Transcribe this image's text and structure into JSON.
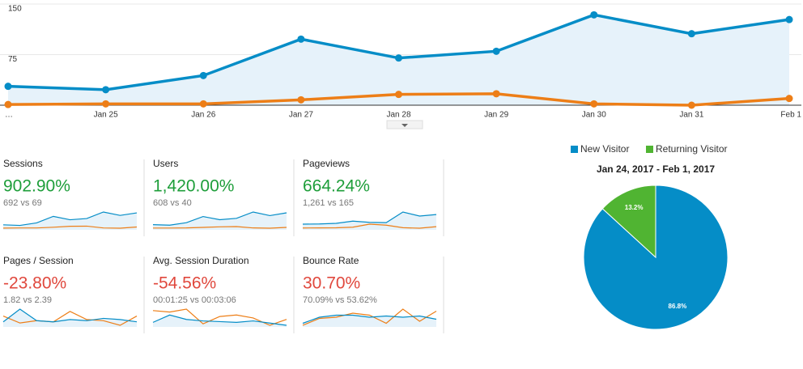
{
  "chart_data": [
    {
      "type": "line",
      "categories": [
        "…",
        "Jan 25",
        "Jan 26",
        "Jan 27",
        "Jan 28",
        "Jan 29",
        "Jan 30",
        "Jan 31",
        "Feb 1"
      ],
      "series": [
        {
          "color": "#058dc7",
          "values": [
            28,
            23,
            44,
            98,
            70,
            80,
            134,
            106,
            127
          ]
        },
        {
          "color": "#ed7e17",
          "values": [
            1,
            2,
            2,
            8,
            16,
            17,
            2,
            0,
            10
          ]
        }
      ],
      "ylim": [
        0,
        150
      ],
      "yticks": [
        75,
        150
      ],
      "grid": true
    },
    {
      "type": "pie",
      "title": "Jan 24, 2017 - Feb 1, 2017",
      "categories": [
        "New Visitor",
        "Returning Visitor"
      ],
      "values": [
        86.8,
        13.2
      ],
      "value_labels": [
        "86.8%",
        "13.2%"
      ],
      "colors": [
        "#058dc7",
        "#50b432"
      ]
    }
  ],
  "scorecards": [
    {
      "name": "Sessions",
      "change": "902.90%",
      "comparison": "692 vs 69",
      "color": "#1e9e3a",
      "sparkline": [
        [
          28,
          23,
          44,
          98,
          70,
          80,
          134,
          106,
          127
        ],
        [
          1,
          2,
          2,
          8,
          16,
          17,
          2,
          0,
          10
        ]
      ]
    },
    {
      "name": "Users",
      "change": "1,420.00%",
      "comparison": "608 vs 40",
      "color": "#1e9e3a",
      "sparkline": [
        [
          26,
          22,
          40,
          85,
          62,
          72,
          118,
          92,
          112
        ],
        [
          1,
          1,
          2,
          6,
          10,
          12,
          2,
          0,
          6
        ]
      ]
    },
    {
      "name": "Pageviews",
      "change": "664.24%",
      "comparison": "1,261 vs 165",
      "color": "#1e9e3a",
      "sparkline": [
        [
          40,
          42,
          48,
          70,
          58,
          55,
          160,
          120,
          135
        ],
        [
          2,
          3,
          4,
          10,
          40,
          30,
          5,
          0,
          15
        ]
      ]
    },
    {
      "name": "Pages / Session",
      "change": "-23.80%",
      "comparison": "1.82 vs 2.39",
      "color": "#e0483d",
      "sparkline": [
        [
          1.5,
          2.6,
          1.6,
          1.5,
          1.7,
          1.6,
          1.8,
          1.7,
          1.5
        ],
        [
          2.0,
          1.4,
          1.6,
          1.5,
          2.4,
          1.7,
          1.6,
          1.2,
          2.0
        ]
      ]
    },
    {
      "name": "Avg. Session Duration",
      "change": "-54.56%",
      "comparison": "00:01:25 vs 00:03:06",
      "color": "#e0483d",
      "sparkline": [
        [
          60,
          110,
          80,
          70,
          65,
          60,
          70,
          55,
          40
        ],
        [
          140,
          130,
          150,
          50,
          100,
          110,
          90,
          40,
          80
        ]
      ]
    },
    {
      "name": "Bounce Rate",
      "change": "30.70%",
      "comparison": "70.09% vs 53.62%",
      "color": "#e0483d",
      "sparkline": [
        [
          60,
          75,
          80,
          80,
          75,
          78,
          75,
          78,
          70
        ],
        [
          55,
          72,
          75,
          85,
          80,
          60,
          95,
          65,
          90
        ]
      ]
    }
  ]
}
